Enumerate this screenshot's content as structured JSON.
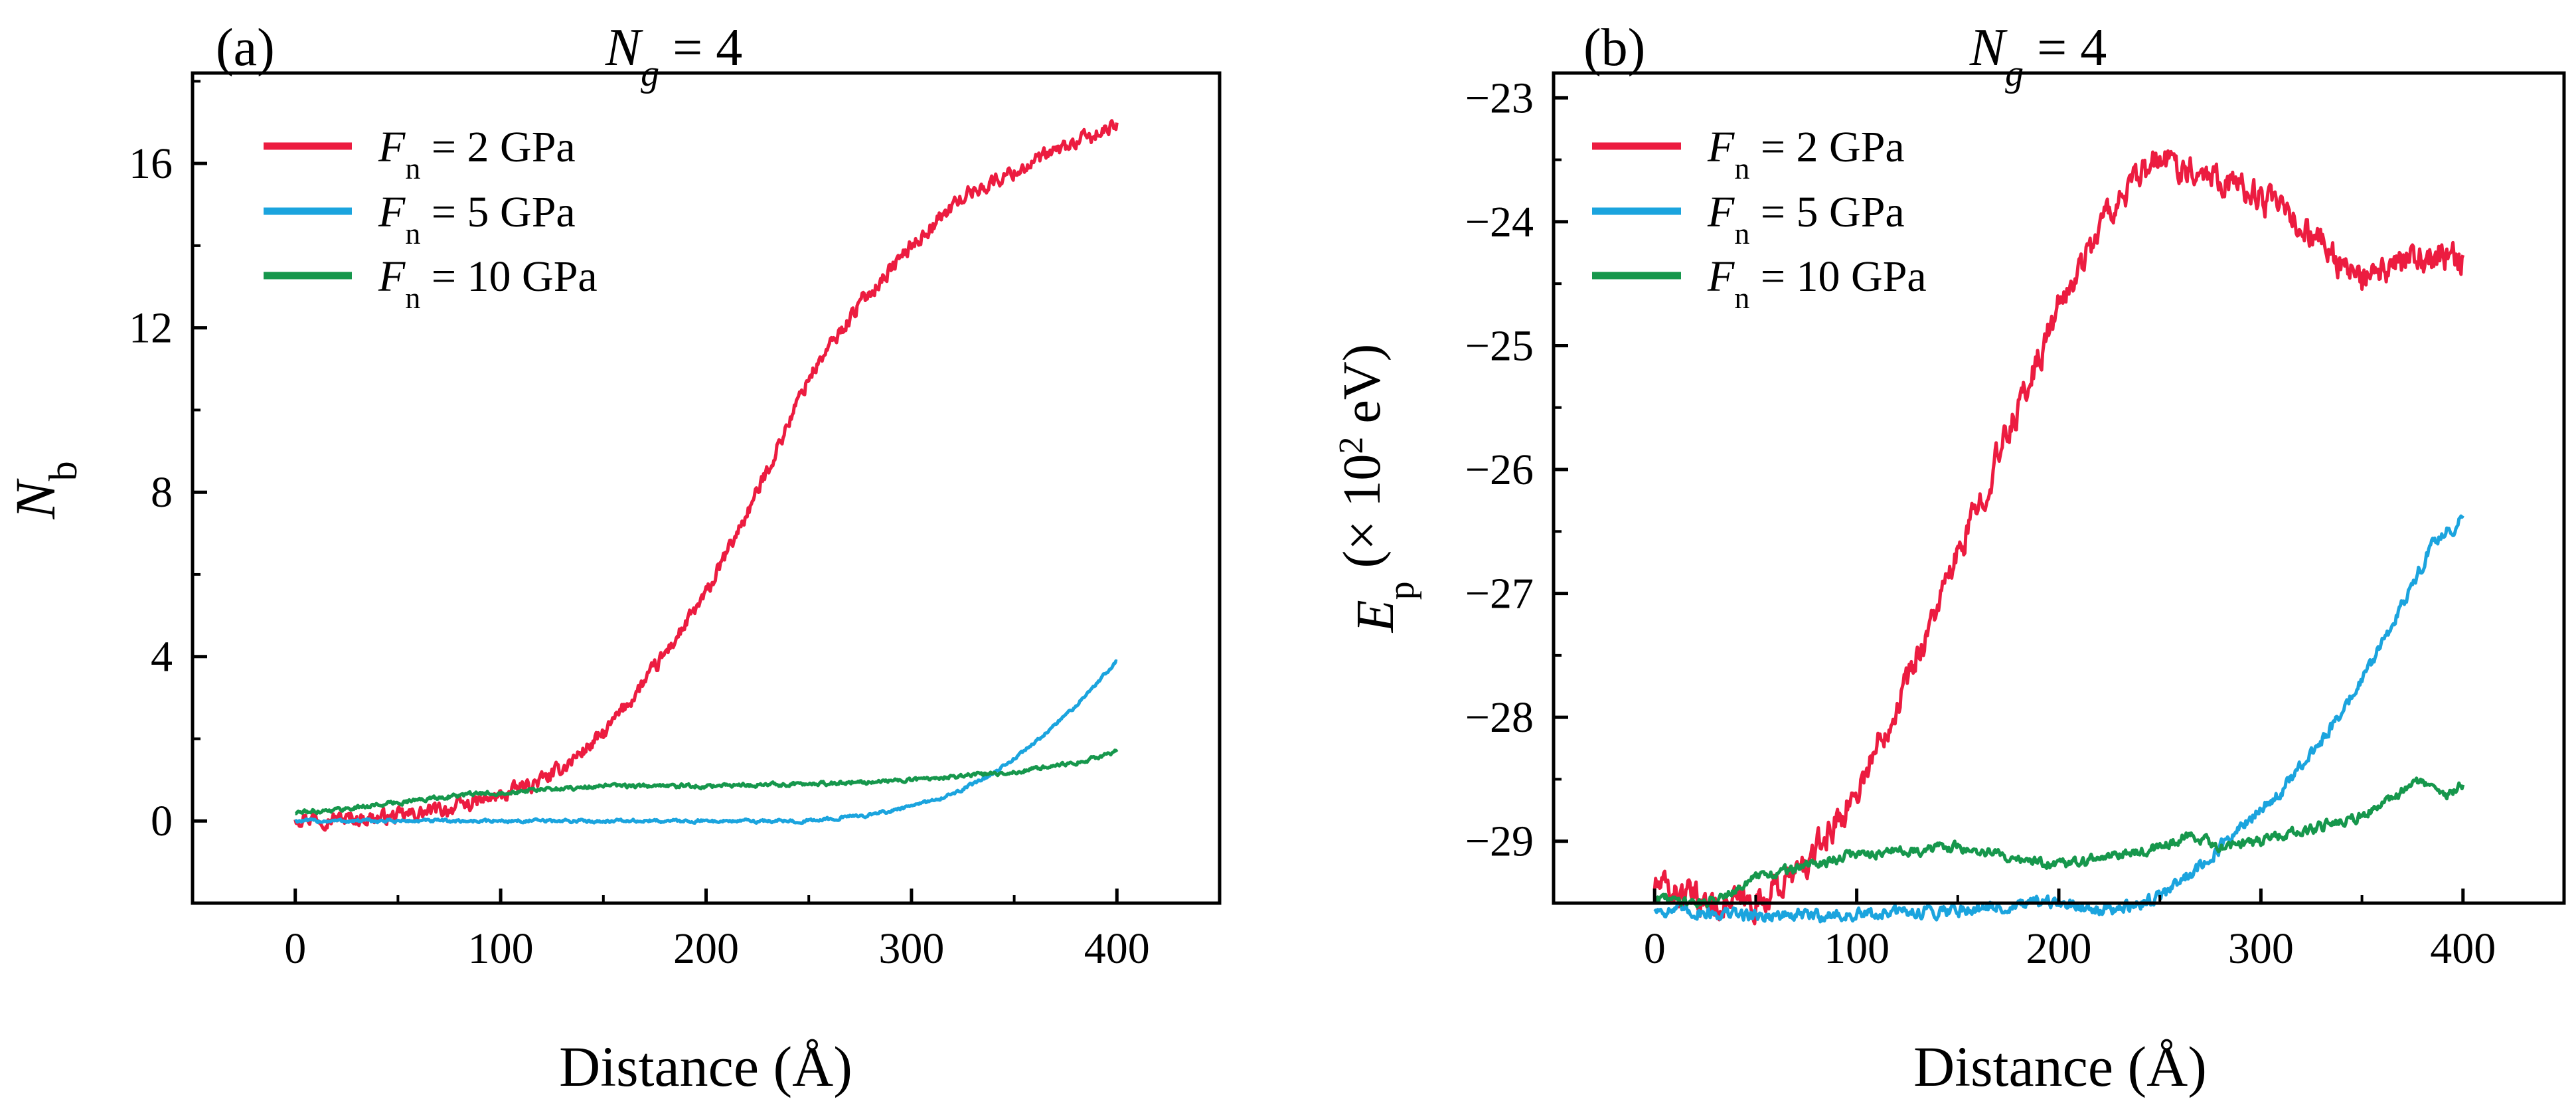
{
  "colors": {
    "red": "#ec1c40",
    "blue": "#1ba4de",
    "green": "#16974c",
    "axis": "#000000"
  },
  "chart_data": [
    {
      "panel": "a",
      "type": "line",
      "panel_label": "(a)",
      "title": {
        "var": "N",
        "sub": "g",
        "rest": " = 4"
      },
      "xlabel": "Distance (Å)",
      "ylabel": {
        "var": "N",
        "sub": "b"
      },
      "xlim": [
        -50,
        450
      ],
      "ylim": [
        -2,
        18.2
      ],
      "xticks": [
        0,
        100,
        200,
        300,
        400
      ],
      "xtick_labels": [
        "0",
        "100",
        "200",
        "300",
        "400"
      ],
      "yticks": [
        0,
        4,
        8,
        12,
        16
      ],
      "ytick_labels": [
        "0",
        "4",
        "8",
        "12",
        "16"
      ],
      "legend_position": "top-left",
      "series": [
        {
          "name": "F_n = 2 GPa",
          "label": {
            "var": "F",
            "sub": "n",
            "rest": " = 2 GPa"
          },
          "color_key": "red",
          "x": [
            0,
            25,
            50,
            75,
            100,
            125,
            150,
            175,
            200,
            225,
            250,
            275,
            300,
            325,
            350,
            375,
            400
          ],
          "y": [
            0.1,
            0.05,
            0.1,
            0.3,
            0.6,
            1.1,
            2.1,
            3.7,
            5.5,
            8.0,
            10.8,
            12.6,
            14.0,
            15.2,
            15.8,
            16.4,
            16.9
          ],
          "noise": 0.18
        },
        {
          "name": "F_n = 5 GPa",
          "label": {
            "var": "F",
            "sub": "n",
            "rest": " = 5 GPa"
          },
          "color_key": "blue",
          "x": [
            0,
            50,
            100,
            150,
            200,
            250,
            280,
            300,
            320,
            340,
            360,
            380,
            400
          ],
          "y": [
            0,
            0,
            0,
            0,
            0,
            0,
            0.15,
            0.35,
            0.65,
            1.15,
            1.9,
            2.8,
            3.9
          ],
          "noise": 0.04
        },
        {
          "name": "F_n = 10 GPa",
          "label": {
            "var": "F",
            "sub": "n",
            "rest": " = 10 GPa"
          },
          "color_key": "green",
          "x": [
            0,
            25,
            50,
            75,
            100,
            150,
            200,
            250,
            300,
            350,
            380,
            400
          ],
          "y": [
            0.2,
            0.3,
            0.45,
            0.6,
            0.7,
            0.85,
            0.85,
            0.9,
            1.0,
            1.2,
            1.4,
            1.7
          ],
          "noise": 0.05
        }
      ]
    },
    {
      "panel": "b",
      "type": "line",
      "panel_label": "(b)",
      "title": {
        "var": "N",
        "sub": "g",
        "rest": " = 4"
      },
      "xlabel": "Distance (Å)",
      "ylabel": {
        "var": "E",
        "sub": "p",
        "rest": " (× 10",
        "sup": "2",
        "rest2": " eV)"
      },
      "xlim": [
        -50,
        450
      ],
      "ylim": [
        -29.5,
        -22.8
      ],
      "xticks": [
        0,
        100,
        200,
        300,
        400
      ],
      "xtick_labels": [
        "0",
        "100",
        "200",
        "300",
        "400"
      ],
      "yticks": [
        -29,
        -28,
        -27,
        -26,
        -25,
        -24,
        -23
      ],
      "ytick_labels": [
        "−29",
        "−28",
        "−27",
        "−26",
        "−25",
        "−24",
        "−23"
      ],
      "legend_position": "top-left",
      "series": [
        {
          "name": "F_n = 2 GPa",
          "label": {
            "var": "F",
            "sub": "n",
            "rest": " = 2 GPa"
          },
          "color_key": "red",
          "x": [
            0,
            25,
            50,
            75,
            100,
            125,
            150,
            175,
            200,
            225,
            250,
            275,
            300,
            325,
            350,
            375,
            400
          ],
          "y": [
            -29.35,
            -29.5,
            -29.5,
            -29.2,
            -28.6,
            -27.7,
            -26.7,
            -25.7,
            -24.7,
            -23.9,
            -23.5,
            -23.6,
            -23.8,
            -24.1,
            -24.5,
            -24.3,
            -24.3
          ],
          "noise": 0.12
        },
        {
          "name": "F_n = 5 GPa",
          "label": {
            "var": "F",
            "sub": "n",
            "rest": " = 5 GPa"
          },
          "color_key": "blue",
          "x": [
            0,
            50,
            100,
            150,
            200,
            230,
            250,
            270,
            290,
            310,
            330,
            350,
            370,
            385,
            400
          ],
          "y": [
            -29.55,
            -29.6,
            -29.6,
            -29.55,
            -29.5,
            -29.55,
            -29.45,
            -29.2,
            -28.9,
            -28.6,
            -28.2,
            -27.7,
            -27.1,
            -26.6,
            -26.4
          ],
          "noise": 0.05
        },
        {
          "name": "F_n = 10 GPa",
          "label": {
            "var": "F",
            "sub": "n",
            "rest": " = 10 GPa"
          },
          "color_key": "green",
          "x": [
            0,
            25,
            50,
            75,
            100,
            150,
            200,
            250,
            265,
            280,
            300,
            350,
            380,
            390,
            400
          ],
          "y": [
            -29.45,
            -29.5,
            -29.3,
            -29.2,
            -29.1,
            -29.05,
            -29.2,
            -29.05,
            -28.95,
            -29.05,
            -29.0,
            -28.8,
            -28.5,
            -28.65,
            -28.55
          ],
          "noise": 0.04
        }
      ]
    }
  ]
}
